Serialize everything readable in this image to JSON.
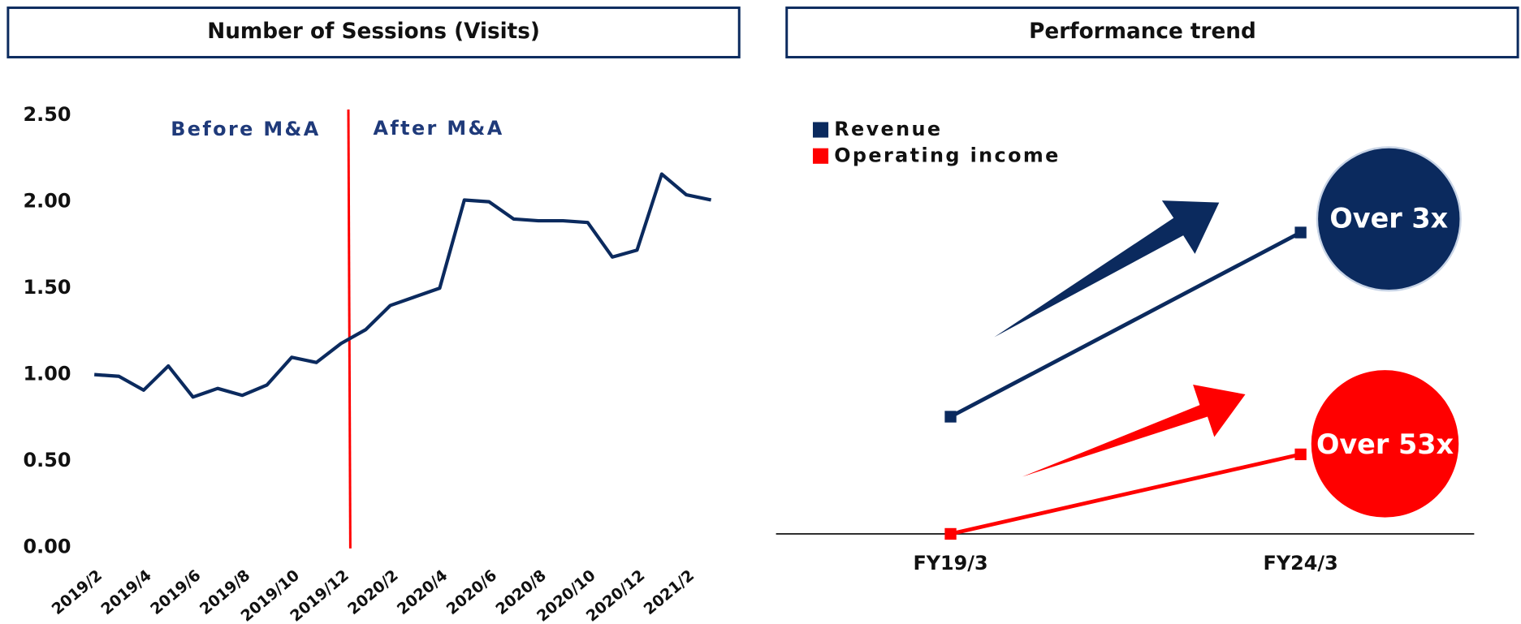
{
  "chart_data": [
    {
      "type": "line",
      "title": "Number of Sessions (Visits)",
      "categories": [
        "2019/2",
        null,
        "2019/4",
        null,
        "2019/6",
        null,
        "2019/8",
        null,
        "2019/10",
        null,
        "2019/12",
        null,
        "2020/2",
        null,
        "2020/4",
        null,
        "2020/6",
        null,
        "2020/8",
        null,
        "2020/10",
        null,
        "2020/12",
        null,
        "2021/2",
        null
      ],
      "series": [
        {
          "name": "Sessions",
          "color": "#0b2a5e",
          "values": [
            1.0,
            0.99,
            0.91,
            1.05,
            0.87,
            0.92,
            0.88,
            0.94,
            1.1,
            1.07,
            1.18,
            1.26,
            1.4,
            1.45,
            1.5,
            2.01,
            2.0,
            1.9,
            1.89,
            1.89,
            1.88,
            1.68,
            1.72,
            2.16,
            2.04,
            2.01
          ]
        }
      ],
      "ylim": [
        0,
        2.5
      ],
      "yticks": [
        {
          "value": 0,
          "label": "0.00"
        },
        {
          "value": 0.5,
          "label": "0.50"
        },
        {
          "value": 1,
          "label": "1.00"
        },
        {
          "value": 1.5,
          "label": "1.50"
        },
        {
          "value": 2,
          "label": "2.00"
        },
        {
          "value": 2.5,
          "label": "2.50"
        }
      ],
      "grid": false,
      "annotations": [
        "Before M&A",
        "After M&A"
      ]
    },
    {
      "type": "line",
      "title": "Performance trend",
      "categories": [
        "FY19/3",
        "FY24/3"
      ],
      "series": [
        {
          "name": "Revenue",
          "color": "#0b2a5e",
          "values": [
            0.28,
            0.72
          ]
        },
        {
          "name": "Operating income",
          "color": "#ff0000",
          "values": [
            0.0,
            0.19
          ]
        }
      ],
      "ylim": [
        0,
        1
      ],
      "legend": "upper left",
      "annotations": [
        "Over 3x",
        "Over 53x"
      ]
    }
  ]
}
